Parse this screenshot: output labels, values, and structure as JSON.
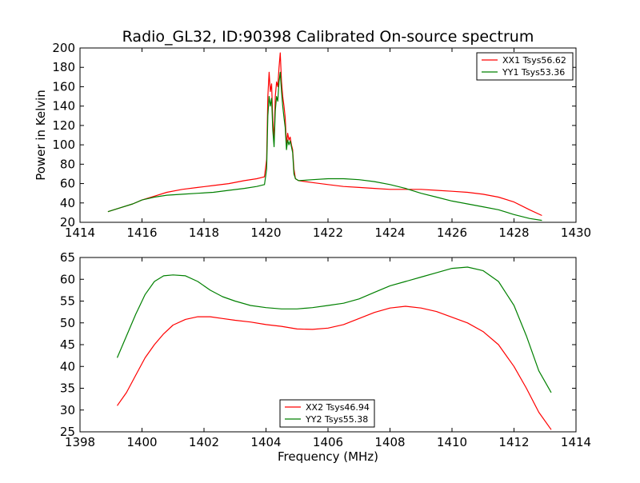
{
  "chart_data": [
    {
      "type": "line",
      "title": "Radio_GL32, ID:90398 Calibrated On-source spectrum",
      "xlabel": "",
      "ylabel": "Power in Kelvin",
      "xlim": [
        1414,
        1430
      ],
      "ylim": [
        20,
        200
      ],
      "xticks": [
        1414,
        1416,
        1418,
        1420,
        1422,
        1424,
        1426,
        1428,
        1430
      ],
      "yticks": [
        20,
        40,
        60,
        80,
        100,
        120,
        140,
        160,
        180,
        200
      ],
      "legend": "top-right",
      "grid": false,
      "series": [
        {
          "name": "XX1 Tsys56.62",
          "color": "#ff0000",
          "x": [
            1414.9,
            1415.3,
            1415.7,
            1416.0,
            1416.4,
            1416.8,
            1417.3,
            1417.8,
            1418.3,
            1418.8,
            1419.3,
            1419.7,
            1419.95,
            1420.02,
            1420.06,
            1420.1,
            1420.14,
            1420.18,
            1420.22,
            1420.26,
            1420.3,
            1420.34,
            1420.38,
            1420.42,
            1420.46,
            1420.5,
            1420.54,
            1420.58,
            1420.62,
            1420.66,
            1420.7,
            1420.74,
            1420.78,
            1420.82,
            1420.86,
            1420.9,
            1420.95,
            1421.05,
            1421.5,
            1422.0,
            1422.5,
            1423.0,
            1423.5,
            1424.0,
            1424.5,
            1425.0,
            1425.5,
            1426.0,
            1426.5,
            1427.0,
            1427.5,
            1428.0,
            1428.5,
            1428.9
          ],
          "y": [
            31,
            35,
            39,
            43,
            47,
            51,
            54,
            56,
            58,
            60,
            63,
            65,
            67,
            85,
            150,
            175,
            155,
            163,
            125,
            105,
            150,
            165,
            160,
            180,
            195,
            165,
            150,
            140,
            128,
            100,
            112,
            105,
            108,
            100,
            95,
            75,
            65,
            63,
            61,
            59,
            57,
            56,
            55,
            54,
            54,
            54,
            53,
            52,
            51,
            49,
            46,
            41,
            33,
            27
          ]
        },
        {
          "name": "YY1 Tsys53.36",
          "color": "#008000",
          "x": [
            1414.9,
            1415.3,
            1415.7,
            1416.0,
            1416.4,
            1416.8,
            1417.3,
            1417.8,
            1418.3,
            1418.8,
            1419.3,
            1419.7,
            1419.95,
            1420.02,
            1420.06,
            1420.1,
            1420.14,
            1420.18,
            1420.22,
            1420.26,
            1420.3,
            1420.34,
            1420.38,
            1420.42,
            1420.46,
            1420.5,
            1420.54,
            1420.58,
            1420.62,
            1420.66,
            1420.7,
            1420.74,
            1420.78,
            1420.82,
            1420.86,
            1420.9,
            1420.95,
            1421.05,
            1421.5,
            1422.0,
            1422.5,
            1423.0,
            1423.5,
            1424.0,
            1424.5,
            1425.0,
            1425.5,
            1426.0,
            1426.5,
            1427.0,
            1427.5,
            1428.0,
            1428.5,
            1428.9
          ],
          "y": [
            31,
            35,
            39,
            43,
            46,
            48,
            49,
            50,
            51,
            53,
            55,
            57,
            59,
            75,
            130,
            150,
            140,
            148,
            115,
            98,
            135,
            150,
            145,
            165,
            175,
            155,
            140,
            128,
            118,
            95,
            105,
            100,
            104,
            98,
            92,
            70,
            65,
            63,
            64,
            65,
            65,
            64,
            62,
            59,
            55,
            50,
            46,
            42,
            39,
            36,
            33,
            28,
            24,
            22
          ]
        }
      ]
    },
    {
      "type": "line",
      "title": "",
      "xlabel": "Frequency (MHz)",
      "ylabel": "",
      "xlim": [
        1398,
        1414
      ],
      "ylim": [
        25,
        65
      ],
      "xticks": [
        1398,
        1400,
        1402,
        1404,
        1406,
        1408,
        1410,
        1412,
        1414
      ],
      "yticks": [
        25,
        30,
        35,
        40,
        45,
        50,
        55,
        60,
        65
      ],
      "legend": "bottom-center",
      "grid": false,
      "series": [
        {
          "name": "XX2 Tsys46.94",
          "color": "#ff0000",
          "x": [
            1399.2,
            1399.5,
            1399.8,
            1400.1,
            1400.4,
            1400.7,
            1401.0,
            1401.4,
            1401.8,
            1402.2,
            1402.6,
            1403.0,
            1403.5,
            1404.0,
            1404.5,
            1405.0,
            1405.5,
            1406.0,
            1406.5,
            1407.0,
            1407.5,
            1408.0,
            1408.5,
            1409.0,
            1409.5,
            1410.0,
            1410.5,
            1411.0,
            1411.5,
            1412.0,
            1412.4,
            1412.8,
            1413.2
          ],
          "y": [
            31,
            34,
            38,
            42,
            45,
            47.5,
            49.5,
            50.8,
            51.4,
            51.4,
            51,
            50.6,
            50.2,
            49.6,
            49.2,
            48.6,
            48.5,
            48.8,
            49.6,
            51,
            52.4,
            53.4,
            53.8,
            53.4,
            52.6,
            51.3,
            50,
            48,
            45,
            40,
            35,
            29.5,
            25.5
          ]
        },
        {
          "name": "YY2 Tsys55.38",
          "color": "#008000",
          "x": [
            1399.2,
            1399.5,
            1399.8,
            1400.1,
            1400.4,
            1400.7,
            1401.0,
            1401.4,
            1401.8,
            1402.2,
            1402.6,
            1403.0,
            1403.5,
            1404.0,
            1404.5,
            1405.0,
            1405.5,
            1406.0,
            1406.5,
            1407.0,
            1407.5,
            1408.0,
            1408.5,
            1409.0,
            1409.5,
            1410.0,
            1410.5,
            1411.0,
            1411.5,
            1412.0,
            1412.4,
            1412.8,
            1413.2
          ],
          "y": [
            42,
            47,
            52,
            56.5,
            59.5,
            60.8,
            61,
            60.8,
            59.5,
            57.5,
            56,
            55,
            54,
            53.5,
            53.2,
            53.2,
            53.5,
            54,
            54.5,
            55.5,
            57,
            58.5,
            59.5,
            60.5,
            61.5,
            62.5,
            62.8,
            62,
            59.5,
            54,
            47,
            39,
            34
          ]
        }
      ]
    }
  ]
}
